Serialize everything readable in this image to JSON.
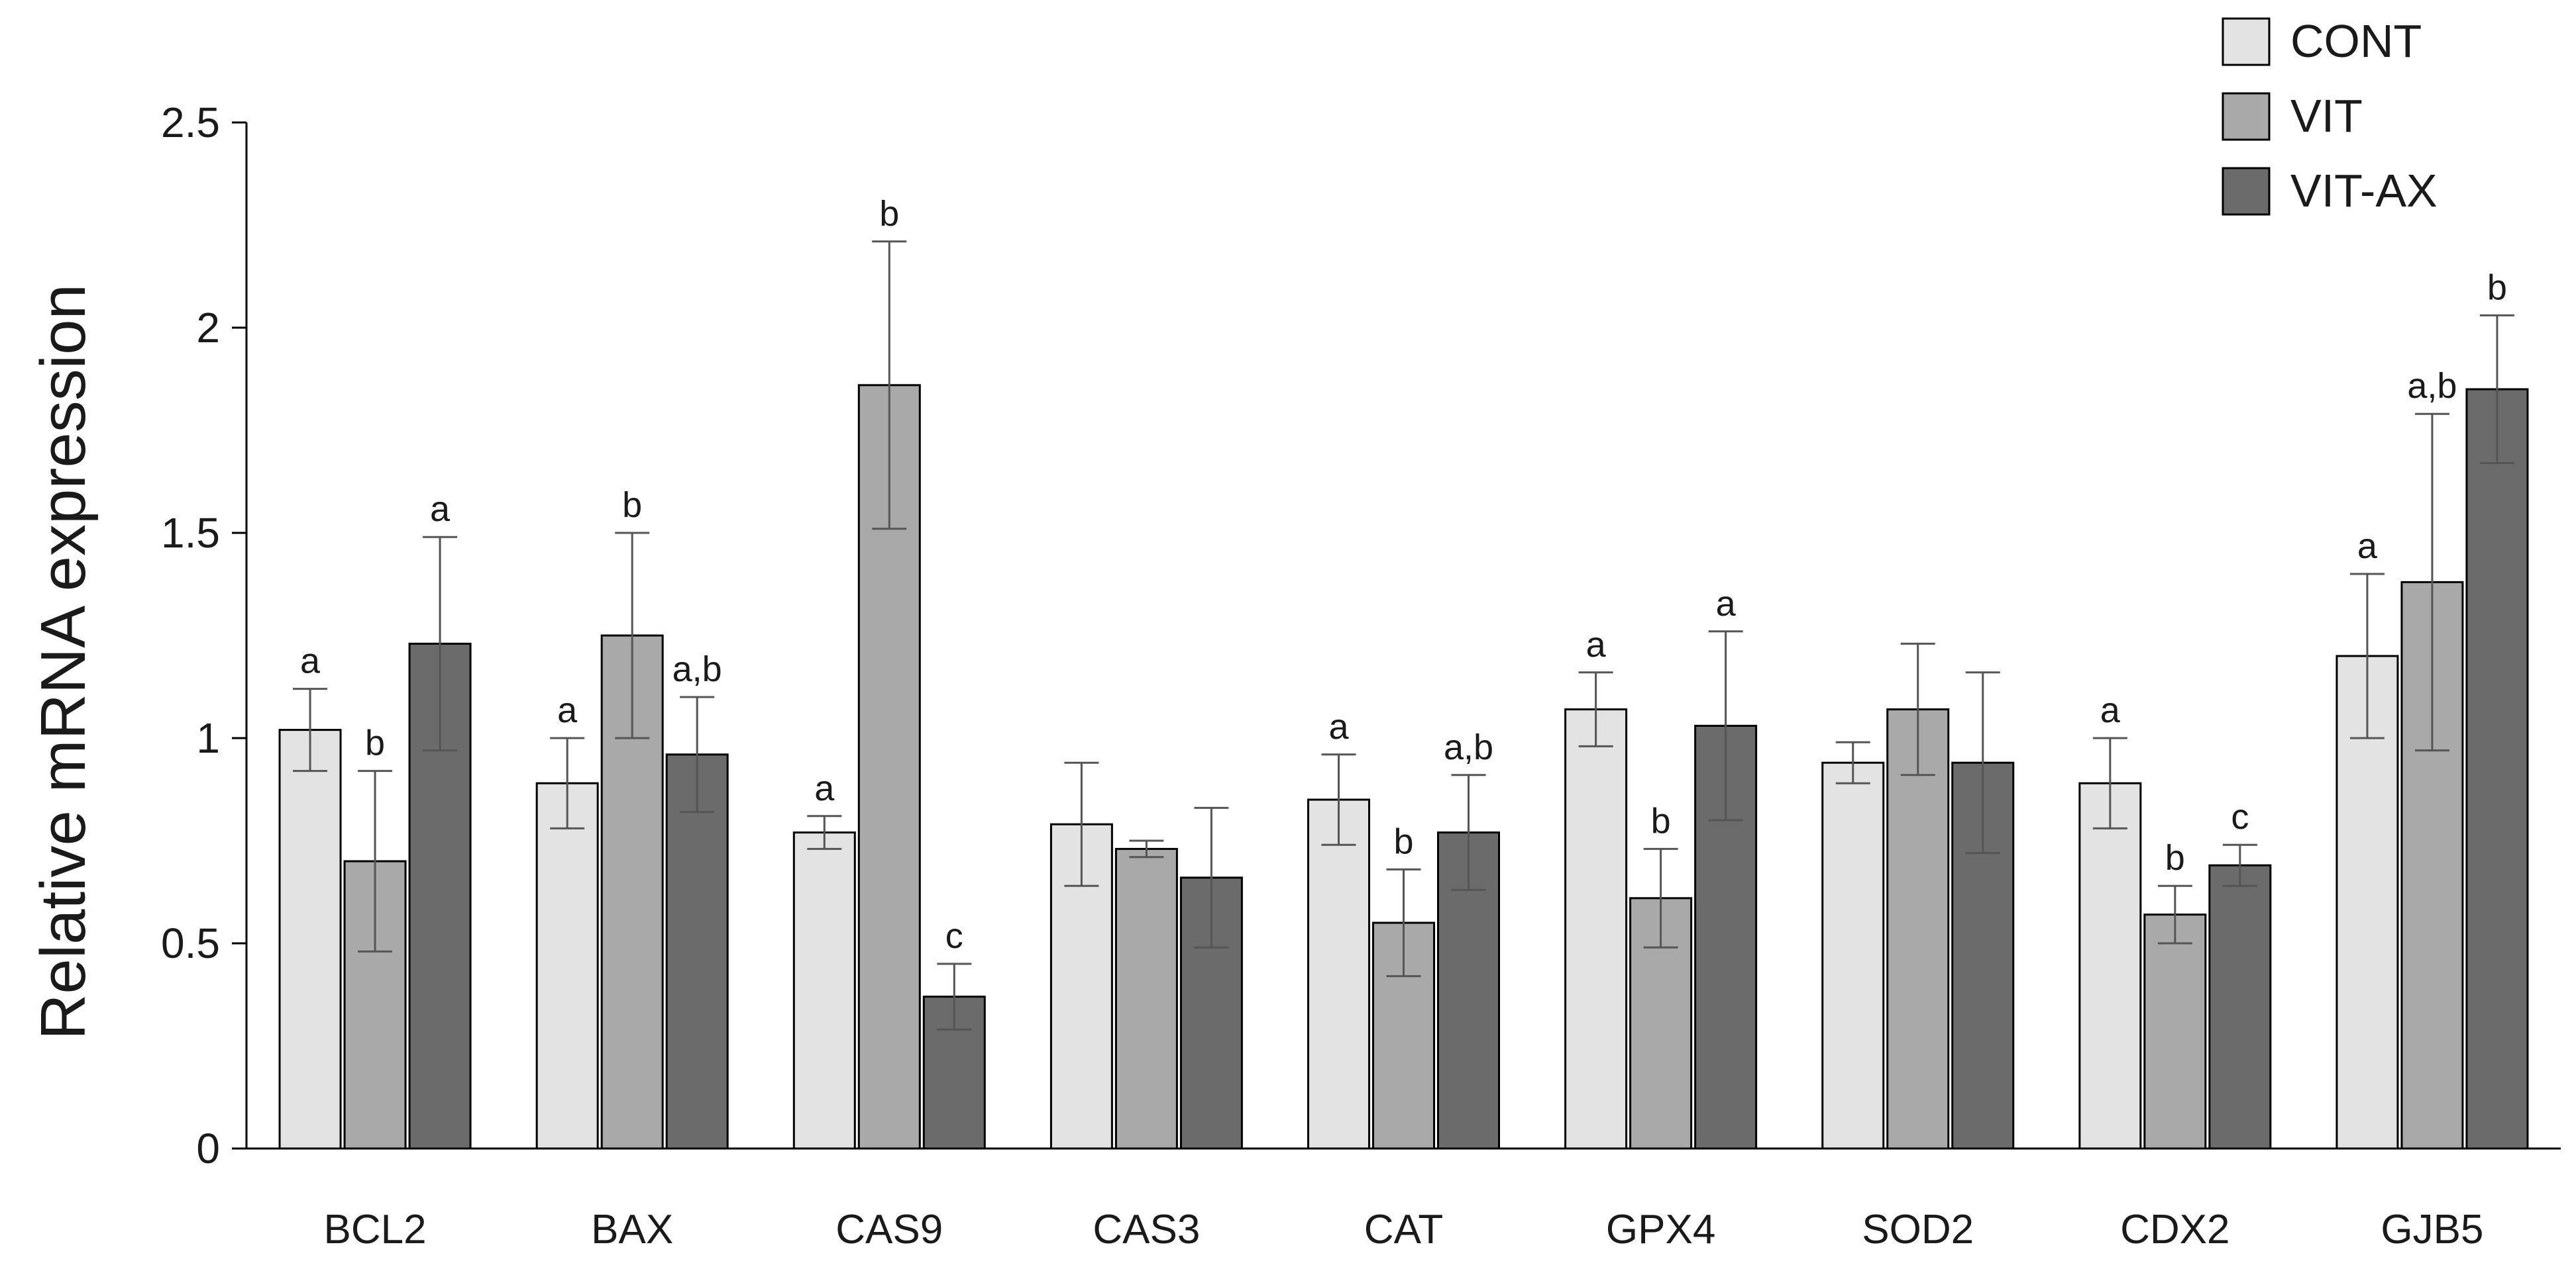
{
  "chart_data": {
    "type": "bar",
    "title": "",
    "xlabel": "",
    "ylabel": "Relative mRNA expression",
    "ylim": [
      0,
      2.5
    ],
    "yticks": [
      0,
      0.5,
      1,
      1.5,
      2,
      2.5
    ],
    "ytick_labels": [
      "0",
      "0.5",
      "1",
      "1.5",
      "2",
      "2.5"
    ],
    "grid": false,
    "legend_position": "top-right",
    "categories": [
      "BCL2",
      "BAX",
      "CAS9",
      "CAS3",
      "CAT",
      "GPX4",
      "SOD2",
      "CDX2",
      "GJB5"
    ],
    "series": [
      {
        "name": "CONT",
        "color": "#e3e3e3",
        "values": [
          1.02,
          0.89,
          0.77,
          0.79,
          0.85,
          1.07,
          0.94,
          0.89,
          1.2
        ],
        "errors": [
          0.1,
          0.11,
          0.04,
          0.15,
          0.11,
          0.09,
          0.05,
          0.11,
          0.2
        ],
        "labels": [
          "a",
          "a",
          "a",
          "",
          "a",
          "a",
          "",
          "a",
          "a"
        ]
      },
      {
        "name": "VIT",
        "color": "#a9a9a9",
        "values": [
          0.7,
          1.25,
          1.86,
          0.73,
          0.55,
          0.61,
          1.07,
          0.57,
          1.38
        ],
        "errors": [
          0.22,
          0.25,
          0.35,
          0.02,
          0.13,
          0.12,
          0.16,
          0.07,
          0.41
        ],
        "labels": [
          "b",
          "b",
          "b",
          "",
          "b",
          "b",
          "",
          "b",
          "a,b"
        ]
      },
      {
        "name": "VIT-AX",
        "color": "#6b6b6b",
        "values": [
          1.23,
          0.96,
          0.37,
          0.66,
          0.77,
          1.03,
          0.94,
          0.69,
          1.85
        ],
        "errors": [
          0.26,
          0.14,
          0.08,
          0.17,
          0.14,
          0.23,
          0.22,
          0.05,
          0.18
        ],
        "labels": [
          "a",
          "a,b",
          "c",
          "",
          "a,b",
          "a",
          "",
          "c",
          "b"
        ]
      }
    ]
  }
}
